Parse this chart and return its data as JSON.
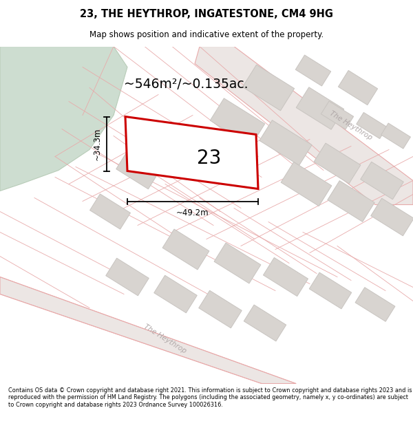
{
  "title": "23, THE HEYTHROP, INGATESTONE, CM4 9HG",
  "subtitle": "Map shows position and indicative extent of the property.",
  "footer": "Contains OS data © Crown copyright and database right 2021. This information is subject to Crown copyright and database rights 2023 and is reproduced with the permission of HM Land Registry. The polygons (including the associated geometry, namely x, y co-ordinates) are subject to Crown copyright and database rights 2023 Ordnance Survey 100026316.",
  "map_bg": "#f7f5f3",
  "plot_color": "#cc0000",
  "road_color": "#e8aaaa",
  "road_fill": "#ede8e6",
  "building_color": "#d8d4d0",
  "building_edge": "#c8c4c0",
  "green_color": "#cdddd0",
  "green_edge": "#b8ccb8",
  "area_text": "~546m²/~0.135ac.",
  "width_text": "~49.2m",
  "height_text": "~34.3m",
  "plot_number": "23",
  "road_label_ur": "The Heythrop",
  "road_label_lr": "The Heythrop",
  "figsize": [
    6.0,
    6.25
  ],
  "dpi": 100
}
